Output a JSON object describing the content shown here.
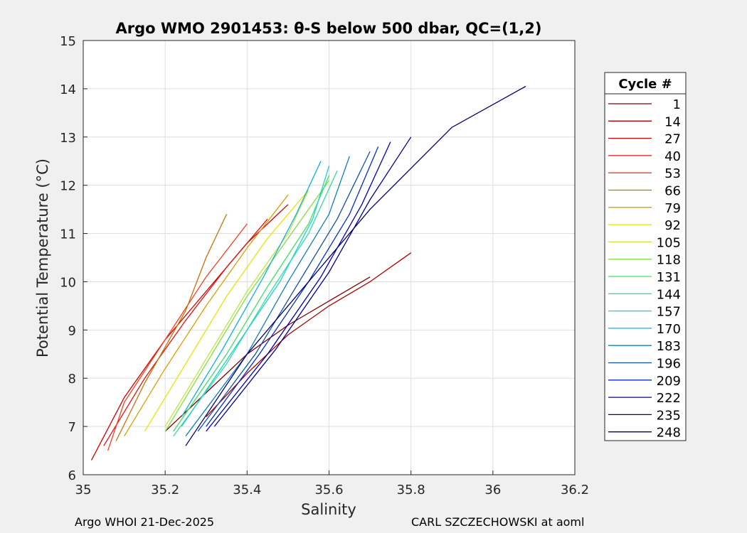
{
  "chart_data": {
    "type": "line",
    "title": "Argo WMO 2901453: θ-S below 500 dbar,  QC=(1,2)",
    "xlabel": "Salinity",
    "ylabel": "Potential Temperature (°C)",
    "xlim": [
      35,
      36.2
    ],
    "ylim": [
      6,
      15
    ],
    "xticks": [
      "35",
      "35.2",
      "35.4",
      "35.6",
      "35.8",
      "36",
      "36.2"
    ],
    "yticks": [
      "6",
      "7",
      "8",
      "9",
      "10",
      "11",
      "12",
      "13",
      "14",
      "15"
    ],
    "grid": true,
    "legend": {
      "title": "Cycle #",
      "placement": "outside-right",
      "entries": [
        "1",
        "14",
        "27",
        "40",
        "53",
        "66",
        "79",
        "92",
        "105",
        "118",
        "131",
        "144",
        "157",
        "170",
        "183",
        "196",
        "209",
        "222",
        "235",
        "248"
      ],
      "colors": [
        "#800000",
        "#b00000",
        "#d00000",
        "#e81010",
        "#f04020",
        "#c87000",
        "#d8a000",
        "#e6e600",
        "#c0e640",
        "#80e040",
        "#40e060",
        "#30e0a0",
        "#20d0d0",
        "#10b0e0",
        "#1080c0",
        "#1050a0",
        "#0030c8",
        "#0000b0",
        "#000090",
        "#000070"
      ]
    },
    "series": [
      {
        "name": "1",
        "s": [
          35.7,
          35.6,
          35.5,
          35.4,
          35.3,
          35.2
        ],
        "t": [
          10.1,
          9.6,
          9.1,
          8.5,
          7.7,
          6.9
        ]
      },
      {
        "name": "14",
        "s": [
          35.8,
          35.7,
          35.6,
          35.5,
          35.4,
          35.3
        ],
        "t": [
          10.6,
          10.0,
          9.5,
          8.9,
          8.1,
          7.2
        ]
      },
      {
        "name": "27",
        "s": [
          35.5,
          35.4,
          35.3,
          35.2,
          35.1,
          35.02
        ],
        "t": [
          11.6,
          10.8,
          9.8,
          8.8,
          7.6,
          6.3
        ]
      },
      {
        "name": "40",
        "s": [
          35.45,
          35.35,
          35.25,
          35.15,
          35.05
        ],
        "t": [
          11.3,
          10.3,
          9.2,
          8.0,
          6.6
        ]
      },
      {
        "name": "53",
        "s": [
          35.4,
          35.3,
          35.2,
          35.1,
          35.06
        ],
        "t": [
          11.2,
          10.1,
          8.8,
          7.5,
          6.5
        ]
      },
      {
        "name": "66",
        "s": [
          35.35,
          35.3,
          35.25,
          35.15,
          35.08
        ],
        "t": [
          11.4,
          10.5,
          9.4,
          7.9,
          6.7
        ]
      },
      {
        "name": "79",
        "s": [
          35.5,
          35.4,
          35.3,
          35.2,
          35.1
        ],
        "t": [
          11.8,
          10.7,
          9.5,
          8.2,
          6.8
        ]
      },
      {
        "name": "92",
        "s": [
          35.55,
          35.45,
          35.35,
          35.25,
          35.15
        ],
        "t": [
          11.9,
          10.9,
          9.7,
          8.3,
          6.9
        ]
      },
      {
        "name": "105",
        "s": [
          35.55,
          35.5,
          35.4,
          35.3,
          35.2
        ],
        "t": [
          11.9,
          11.0,
          9.8,
          8.4,
          7.0
        ]
      },
      {
        "name": "118",
        "s": [
          35.6,
          35.5,
          35.4,
          35.3,
          35.2
        ],
        "t": [
          12.1,
          10.9,
          9.7,
          8.3,
          6.9
        ]
      },
      {
        "name": "131",
        "s": [
          35.6,
          35.55,
          35.45,
          35.35,
          35.22
        ],
        "t": [
          12.2,
          11.2,
          9.9,
          8.5,
          6.9
        ]
      },
      {
        "name": "144",
        "s": [
          35.62,
          35.55,
          35.45,
          35.35,
          35.22
        ],
        "t": [
          12.3,
          11.0,
          9.7,
          8.3,
          6.8
        ]
      },
      {
        "name": "157",
        "s": [
          35.6,
          35.56,
          35.48,
          35.36,
          35.24
        ],
        "t": [
          12.4,
          11.3,
          10.0,
          8.5,
          7.0
        ]
      },
      {
        "name": "170",
        "s": [
          35.58,
          35.52,
          35.44,
          35.34,
          35.24
        ],
        "t": [
          12.5,
          11.4,
          10.1,
          8.6,
          7.2
        ]
      },
      {
        "name": "183",
        "s": [
          35.65,
          35.6,
          35.5,
          35.4,
          35.25
        ],
        "t": [
          12.6,
          11.4,
          10.0,
          8.5,
          6.8
        ]
      },
      {
        "name": "196",
        "s": [
          35.7,
          35.62,
          35.52,
          35.42,
          35.28
        ],
        "t": [
          12.7,
          11.3,
          9.9,
          8.5,
          6.9
        ]
      },
      {
        "name": "209",
        "s": [
          35.72,
          35.65,
          35.55,
          35.43,
          35.3
        ],
        "t": [
          12.8,
          11.4,
          10.0,
          8.5,
          7.0
        ]
      },
      {
        "name": "222",
        "s": [
          35.75,
          35.68,
          35.58,
          35.45,
          35.3
        ],
        "t": [
          12.9,
          11.6,
          10.1,
          8.5,
          6.9
        ]
      },
      {
        "name": "235",
        "s": [
          35.8,
          35.7,
          35.6,
          35.47,
          35.32
        ],
        "t": [
          13.0,
          11.7,
          10.2,
          8.6,
          7.0
        ]
      },
      {
        "name": "248",
        "s": [
          36.08,
          35.9,
          35.7,
          35.55,
          35.4,
          35.25
        ],
        "t": [
          14.05,
          13.2,
          11.5,
          10.0,
          8.5,
          6.6
        ]
      }
    ]
  },
  "footer": {
    "left": "Argo WHOI 21-Dec-2025",
    "right": "CARL SZCZECHOWSKI at aoml"
  }
}
